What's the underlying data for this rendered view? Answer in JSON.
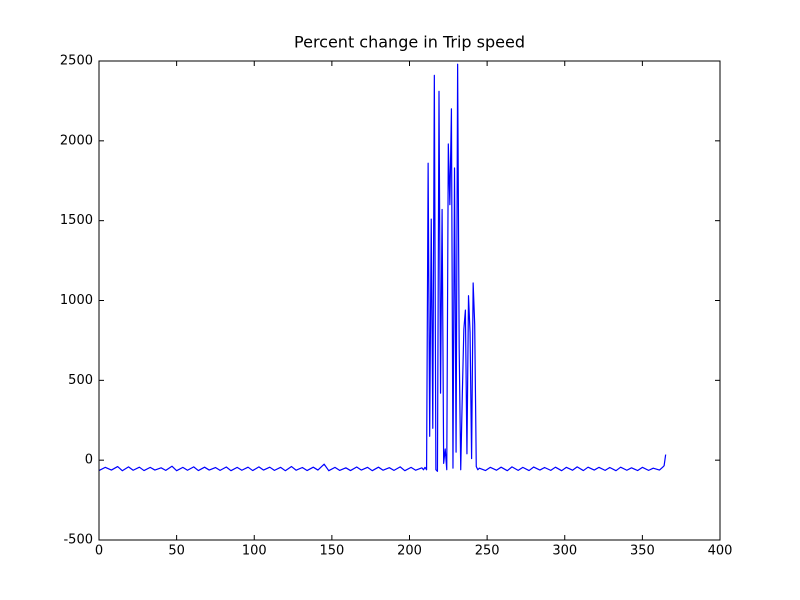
{
  "chart_data": {
    "type": "line",
    "title": "Percent change in Trip speed",
    "x": [
      0,
      4,
      8,
      12,
      15,
      19,
      22,
      26,
      29,
      33,
      36,
      40,
      43,
      47,
      50,
      54,
      57,
      61,
      64,
      68,
      71,
      75,
      78,
      82,
      85,
      89,
      92,
      96,
      99,
      103,
      106,
      110,
      113,
      117,
      120,
      124,
      127,
      131,
      134,
      138,
      141,
      145,
      148,
      152,
      155,
      159,
      162,
      166,
      169,
      173,
      176,
      180,
      183,
      187,
      190,
      194,
      197,
      201,
      204,
      208,
      209,
      210,
      211,
      212,
      213,
      214,
      215,
      216,
      217,
      218,
      219,
      220,
      221,
      222,
      223,
      224,
      225,
      226,
      227,
      228,
      229,
      230,
      231,
      232,
      233,
      234,
      235,
      236,
      237,
      238,
      239,
      240,
      241,
      242,
      243,
      244,
      245,
      249,
      252,
      256,
      259,
      263,
      266,
      270,
      273,
      277,
      280,
      284,
      287,
      291,
      294,
      298,
      301,
      305,
      308,
      312,
      315,
      319,
      322,
      326,
      329,
      333,
      336,
      340,
      343,
      347,
      350,
      354,
      357,
      361,
      363,
      364,
      365
    ],
    "series": [
      {
        "color": "#0000ff",
        "values": [
          -65,
          -45,
          -62,
          -40,
          -66,
          -42,
          -63,
          -44,
          -65,
          -45,
          -62,
          -48,
          -64,
          -38,
          -66,
          -45,
          -63,
          -42,
          -65,
          -44,
          -62,
          -46,
          -64,
          -43,
          -66,
          -45,
          -63,
          -44,
          -65,
          -42,
          -62,
          -44,
          -64,
          -45,
          -66,
          -40,
          -63,
          -46,
          -65,
          -44,
          -62,
          -25,
          -66,
          -45,
          -64,
          -48,
          -65,
          -43,
          -62,
          -45,
          -66,
          -44,
          -63,
          -47,
          -64,
          -42,
          -66,
          -45,
          -63,
          -48,
          -60,
          -45,
          -60,
          1860,
          150,
          1510,
          200,
          2410,
          -60,
          -70,
          2310,
          420,
          1570,
          -20,
          70,
          -60,
          1980,
          1600,
          2200,
          -50,
          1830,
          50,
          2480,
          700,
          -60,
          400,
          820,
          940,
          40,
          1030,
          800,
          10,
          1110,
          850,
          -40,
          -60,
          -50,
          -65,
          -45,
          -63,
          -44,
          -66,
          -42,
          -64,
          -45,
          -65,
          -43,
          -62,
          -46,
          -64,
          -44,
          -66,
          -45,
          -63,
          -42,
          -65,
          -44,
          -62,
          -45,
          -64,
          -46,
          -66,
          -44,
          -63,
          -48,
          -65,
          -45,
          -64,
          -50,
          -62,
          -45,
          -35,
          35
        ]
      }
    ],
    "xlim": [
      0,
      400
    ],
    "xticks": [
      0,
      50,
      100,
      150,
      200,
      250,
      300,
      350,
      400
    ],
    "ylim": [
      -500,
      2500
    ],
    "yticks": [
      -500,
      0,
      500,
      1000,
      1500,
      2000,
      2500
    ]
  }
}
